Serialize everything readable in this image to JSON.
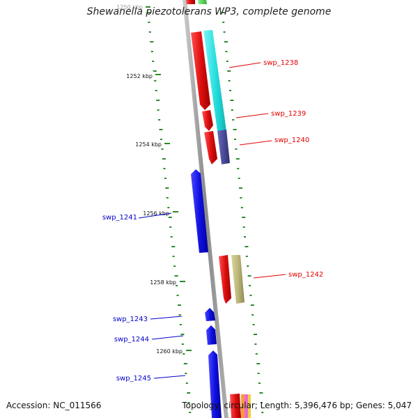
{
  "title": "Shewanella piezotolerans WP3, complete genome",
  "footer": {
    "accession": "Accession: NC_011566",
    "summary": "Topology: circular; Length: 5,396,476 bp; Genes: 5,047"
  },
  "ticks": [
    {
      "kbp": 1250,
      "label": "1250 kbp"
    },
    {
      "kbp": 1252,
      "label": "1252 kbp"
    },
    {
      "kbp": 1254,
      "label": "1254 kbp"
    },
    {
      "kbp": 1256,
      "label": "1256 kbp"
    },
    {
      "kbp": 1258,
      "label": "1258 kbp"
    },
    {
      "kbp": 1260,
      "label": "1260 kbp"
    }
  ],
  "genes": [
    {
      "label": "swp_1238",
      "strand": "forward",
      "color": "#e02020"
    },
    {
      "label": "swp_1239",
      "strand": "forward",
      "color": "#e02020"
    },
    {
      "label": "swp_1240",
      "strand": "forward",
      "color": "#e02020"
    },
    {
      "label": "swp_1241",
      "strand": "reverse",
      "color": "#1a1ae6"
    },
    {
      "label": "swp_1242",
      "strand": "forward",
      "color": "#e02020"
    },
    {
      "label": "swp_1243",
      "strand": "reverse",
      "color": "#1a1ae6"
    },
    {
      "label": "swp_1244",
      "strand": "reverse",
      "color": "#1a1ae6"
    },
    {
      "label": "swp_1245",
      "strand": "reverse",
      "color": "#1a1ae6"
    }
  ],
  "colors": {
    "forward_label": "#e00000",
    "reverse_label": "#0000c8",
    "cog_cyan": "#33e6e6",
    "cog_navy": "#4a4a99",
    "cog_khaki": "#bdb779",
    "backbone": "#8a8a8a",
    "gc_dash": "#2a8a2a"
  }
}
